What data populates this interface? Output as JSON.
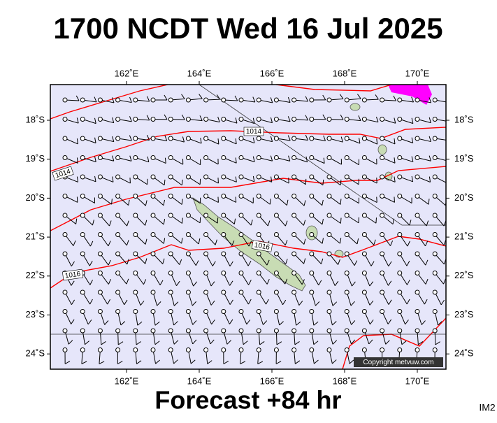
{
  "title": "1700 NCDT Wed 16 Jul 2025",
  "map": {
    "lon_labels": [
      "162˚E",
      "164˚E",
      "166˚E",
      "168˚E",
      "170˚E"
    ],
    "lat_labels": [
      "18˚S",
      "19˚S",
      "20˚S",
      "21˚S",
      "22˚S",
      "23˚S",
      "24˚S"
    ],
    "isobar_labels": [
      "1014",
      "1014",
      "1016",
      "1016"
    ],
    "copyright": "Copyright metvuw.com"
  },
  "footer": "Forecast +84 hr",
  "corner": "IM2"
}
